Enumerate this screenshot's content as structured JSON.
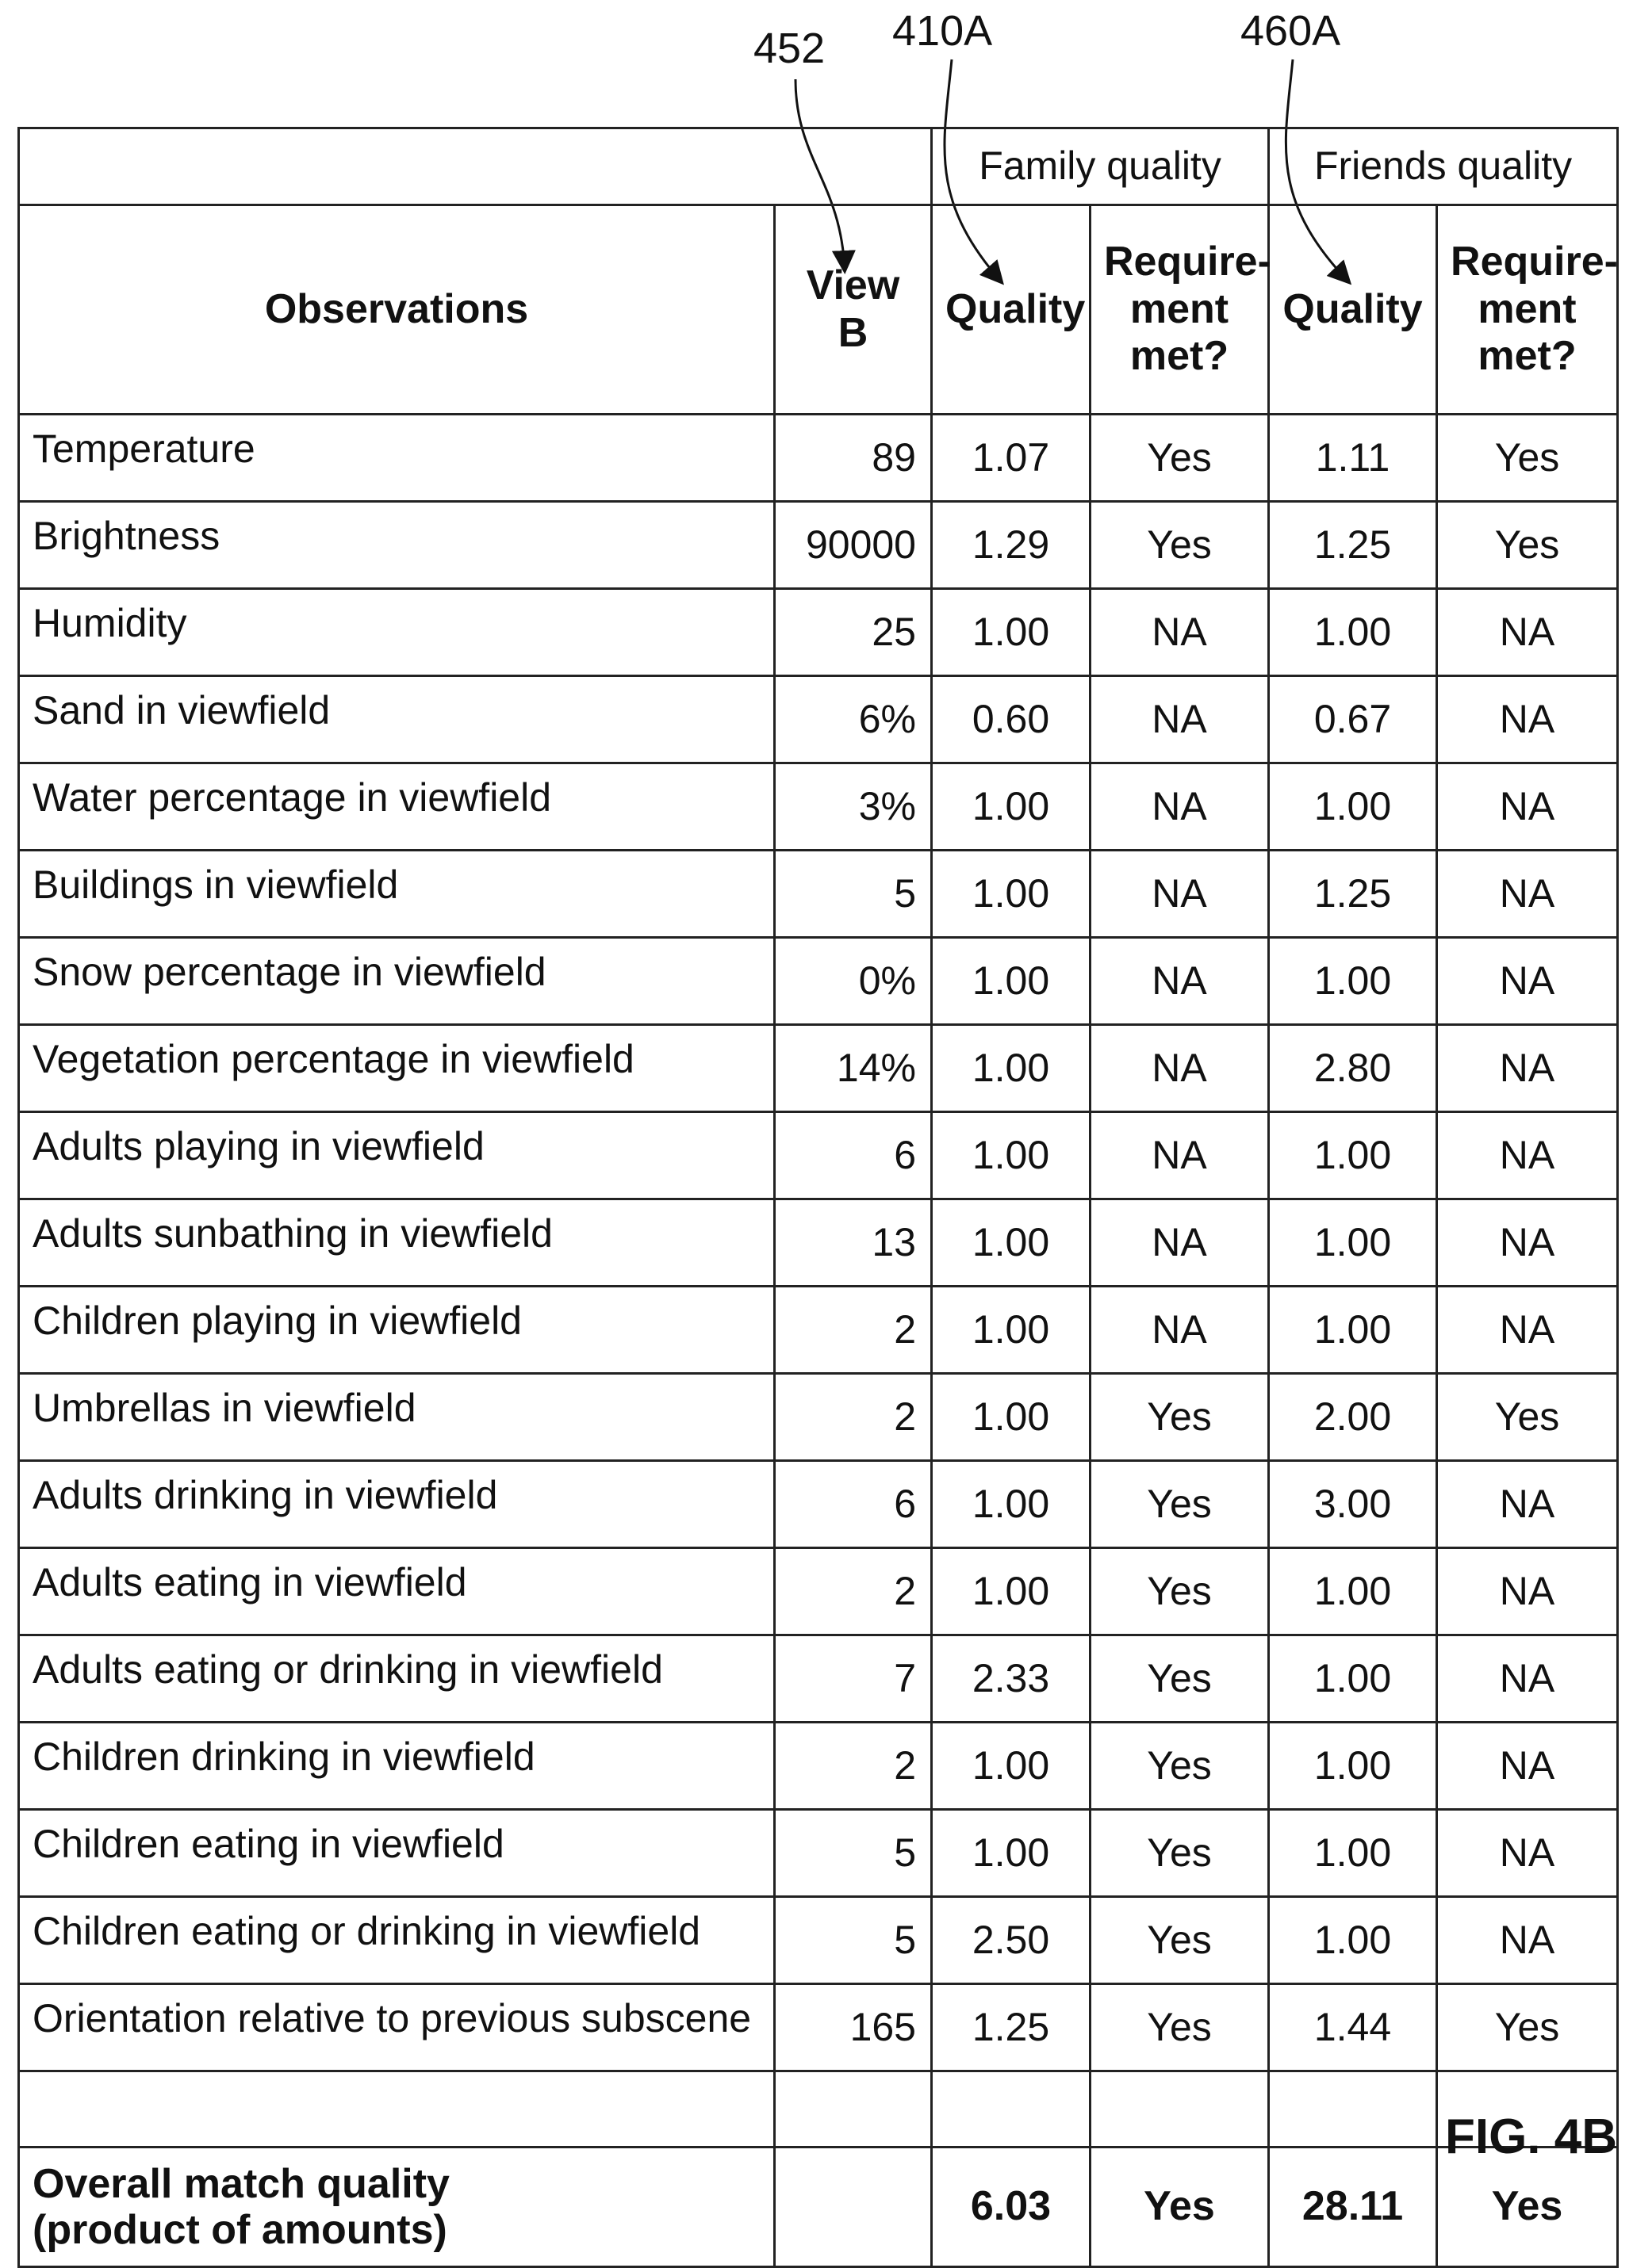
{
  "reference_numerals": {
    "view": "452",
    "family_quality": "410A",
    "friends_quality": "460A"
  },
  "group_headers": {
    "family": "Family quality",
    "friends": "Friends quality"
  },
  "column_headers": {
    "observations": "Observations",
    "view": "View B",
    "family_quality": "Quality",
    "family_requirement": "Require-\nment\nmet?",
    "friends_quality": "Quality",
    "friends_requirement": "Require-\nment\nmet?"
  },
  "rows": [
    {
      "obs": "Temperature",
      "view": "89",
      "fq": "1.07",
      "freq": "Yes",
      "frq": "1.11",
      "frreq": "Yes"
    },
    {
      "obs": "Brightness",
      "view": "90000",
      "fq": "1.29",
      "freq": "Yes",
      "frq": "1.25",
      "frreq": "Yes"
    },
    {
      "obs": "Humidity",
      "view": "25",
      "fq": "1.00",
      "freq": "NA",
      "frq": "1.00",
      "frreq": "NA"
    },
    {
      "obs": "Sand in viewfield",
      "view": "6%",
      "fq": "0.60",
      "freq": "NA",
      "frq": "0.67",
      "frreq": "NA"
    },
    {
      "obs": "Water percentage in viewfield",
      "view": "3%",
      "fq": "1.00",
      "freq": "NA",
      "frq": "1.00",
      "frreq": "NA"
    },
    {
      "obs": "Buildings in viewfield",
      "view": "5",
      "fq": "1.00",
      "freq": "NA",
      "frq": "1.25",
      "frreq": "NA"
    },
    {
      "obs": "Snow percentage in viewfield",
      "view": "0%",
      "fq": "1.00",
      "freq": "NA",
      "frq": "1.00",
      "frreq": "NA"
    },
    {
      "obs": "Vegetation percentage in viewfield",
      "view": "14%",
      "fq": "1.00",
      "freq": "NA",
      "frq": "2.80",
      "frreq": "NA"
    },
    {
      "obs": "Adults playing in viewfield",
      "view": "6",
      "fq": "1.00",
      "freq": "NA",
      "frq": "1.00",
      "frreq": "NA"
    },
    {
      "obs": "Adults sunbathing in viewfield",
      "view": "13",
      "fq": "1.00",
      "freq": "NA",
      "frq": "1.00",
      "frreq": "NA"
    },
    {
      "obs": "Children playing in viewfield",
      "view": "2",
      "fq": "1.00",
      "freq": "NA",
      "frq": "1.00",
      "frreq": "NA"
    },
    {
      "obs": "Umbrellas in viewfield",
      "view": "2",
      "fq": "1.00",
      "freq": "Yes",
      "frq": "2.00",
      "frreq": "Yes"
    },
    {
      "obs": "Adults drinking in viewfield",
      "view": "6",
      "fq": "1.00",
      "freq": "Yes",
      "frq": "3.00",
      "frreq": "NA"
    },
    {
      "obs": "Adults eating in viewfield",
      "view": "2",
      "fq": "1.00",
      "freq": "Yes",
      "frq": "1.00",
      "frreq": "NA"
    },
    {
      "obs": "Adults eating or drinking in viewfield",
      "view": "7",
      "fq": "2.33",
      "freq": "Yes",
      "frq": "1.00",
      "frreq": "NA"
    },
    {
      "obs": "Children drinking in viewfield",
      "view": "2",
      "fq": "1.00",
      "freq": "Yes",
      "frq": "1.00",
      "frreq": "NA"
    },
    {
      "obs": "Children eating in viewfield",
      "view": "5",
      "fq": "1.00",
      "freq": "Yes",
      "frq": "1.00",
      "frreq": "NA"
    },
    {
      "obs": "Children eating or drinking in viewfield",
      "view": "5",
      "fq": "2.50",
      "freq": "Yes",
      "frq": "1.00",
      "frreq": "NA"
    },
    {
      "obs": "Orientation relative to previous subscene",
      "view": "165",
      "fq": "1.25",
      "freq": "Yes",
      "frq": "1.44",
      "frreq": "Yes"
    }
  ],
  "total": {
    "label": "Overall match quality\n(product of amounts)",
    "family_quality": "6.03",
    "family_requirement": "Yes",
    "friends_quality": "28.11",
    "friends_requirement": "Yes"
  },
  "figure_label": "FIG. 4B"
}
